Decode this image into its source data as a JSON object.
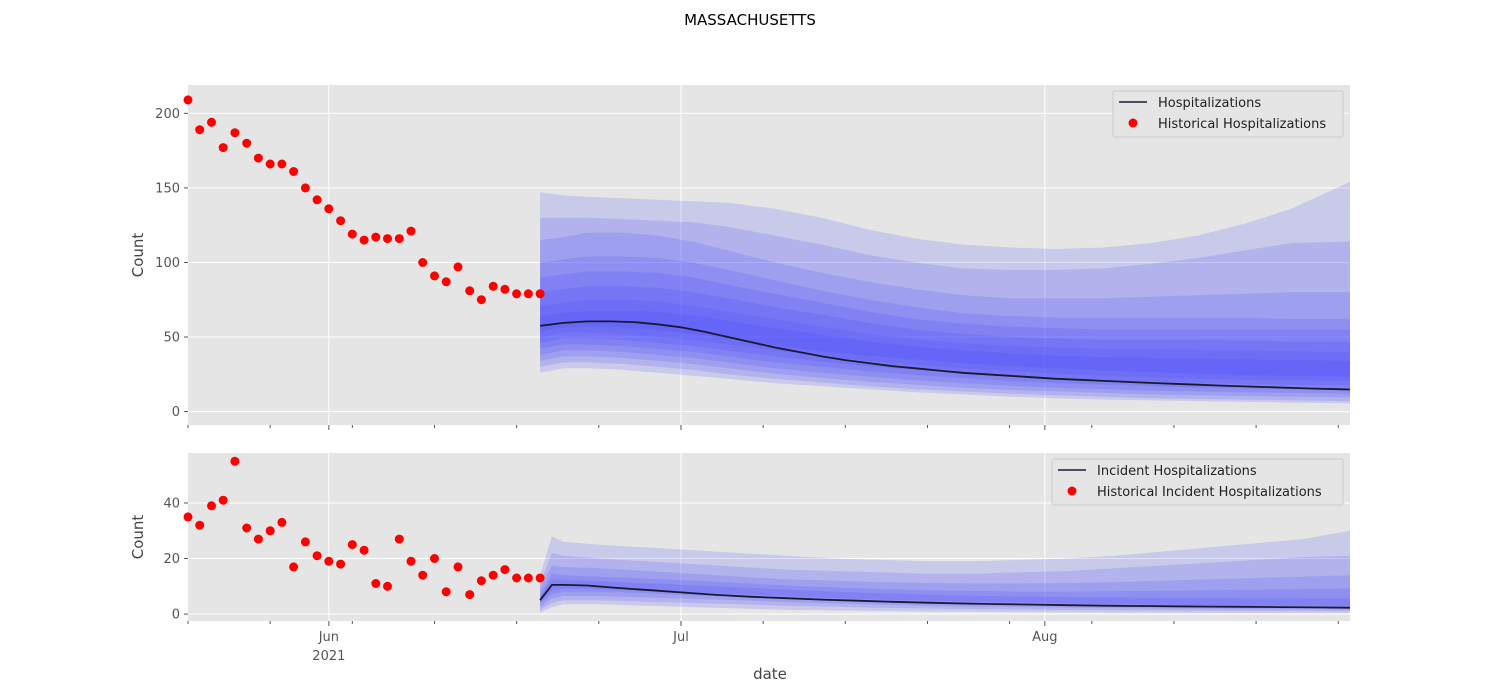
{
  "figure": {
    "title": "MASSACHUSETTS",
    "xlabel": "date"
  },
  "chart_data": [
    {
      "type": "line",
      "ylabel": "Count",
      "ylim": [
        -9,
        219
      ],
      "yticks": [
        0,
        50,
        100,
        150,
        200
      ],
      "grid": true,
      "legend_position": "top-right",
      "x_axis": {
        "type": "date",
        "range": [
          "2021-05-20",
          "2021-08-27"
        ],
        "major_ticks": [
          {
            "date": "2021-06-01",
            "label": "Jun",
            "sublabel": "2021"
          },
          {
            "date": "2021-07-01",
            "label": "Jul"
          },
          {
            "date": "2021-08-01",
            "label": "Aug"
          }
        ]
      },
      "series": [
        {
          "name": "Historical Hospitalizations",
          "kind": "scatter",
          "color": "#ff0000",
          "x": [
            "2021-05-20",
            "2021-05-21",
            "2021-05-22",
            "2021-05-23",
            "2021-05-24",
            "2021-05-25",
            "2021-05-26",
            "2021-05-27",
            "2021-05-28",
            "2021-05-29",
            "2021-05-30",
            "2021-05-31",
            "2021-06-01",
            "2021-06-02",
            "2021-06-03",
            "2021-06-04",
            "2021-06-05",
            "2021-06-06",
            "2021-06-07",
            "2021-06-08",
            "2021-06-09",
            "2021-06-10",
            "2021-06-11",
            "2021-06-12",
            "2021-06-13",
            "2021-06-14",
            "2021-06-15",
            "2021-06-16",
            "2021-06-17",
            "2021-06-18",
            "2021-06-19"
          ],
          "y": [
            209,
            189,
            194,
            177,
            187,
            180,
            170,
            166,
            166,
            161,
            150,
            142,
            136,
            128,
            119,
            115,
            117,
            116,
            116,
            121,
            100,
            91,
            87,
            97,
            81,
            75,
            84,
            82,
            79,
            79,
            79
          ]
        },
        {
          "name": "Hospitalizations",
          "kind": "line",
          "color": "#1a1a2e",
          "x": [
            "2021-06-19",
            "2021-06-21",
            "2021-06-23",
            "2021-06-25",
            "2021-06-27",
            "2021-06-29",
            "2021-07-01",
            "2021-07-03",
            "2021-07-05",
            "2021-07-07",
            "2021-07-09",
            "2021-07-11",
            "2021-07-13",
            "2021-07-15",
            "2021-07-17",
            "2021-07-19",
            "2021-07-21",
            "2021-07-23",
            "2021-07-25",
            "2021-07-27",
            "2021-07-29",
            "2021-07-31",
            "2021-08-02",
            "2021-08-04",
            "2021-08-06",
            "2021-08-08",
            "2021-08-10",
            "2021-08-12",
            "2021-08-14",
            "2021-08-16",
            "2021-08-18",
            "2021-08-20",
            "2021-08-22",
            "2021-08-24",
            "2021-08-26",
            "2021-08-27"
          ],
          "y": [
            57.5,
            59.5,
            60.5,
            60.5,
            60,
            58.5,
            56.5,
            53.5,
            50,
            46.5,
            43,
            40,
            37,
            34.5,
            32.5,
            30.5,
            29,
            27.5,
            26,
            25,
            24,
            23,
            22,
            21.3,
            20.6,
            19.9,
            19.2,
            18.6,
            18,
            17.4,
            16.9,
            16.4,
            15.9,
            15.4,
            15,
            14.8
          ]
        }
      ],
      "uncertainty_bands": {
        "color": "#4040ff",
        "x": [
          "2021-06-19",
          "2021-06-21",
          "2021-06-23",
          "2021-06-26",
          "2021-06-29",
          "2021-07-02",
          "2021-07-05",
          "2021-07-09",
          "2021-07-13",
          "2021-07-17",
          "2021-07-21",
          "2021-07-25",
          "2021-07-29",
          "2021-08-02",
          "2021-08-06",
          "2021-08-10",
          "2021-08-14",
          "2021-08-18",
          "2021-08-22",
          "2021-08-27"
        ],
        "quantile_pairs": [
          {
            "low": [
              26,
              29,
              29,
              28,
              26,
              24,
              22,
              19,
              17,
              15,
              13,
              11.5,
              10,
              9,
              8,
              7.5,
              7,
              6.5,
              6,
              5.5
            ],
            "high": [
              147,
              145,
              144,
              143,
              142,
              141,
              140,
              136,
              130,
              122,
              116,
              112,
              110,
              109,
              110,
              113,
              118,
              126,
              136,
              154
            ]
          },
          {
            "low": [
              30,
              33,
              33,
              32,
              30,
              28,
              25,
              22,
              19.5,
              17,
              15,
              13.5,
              12,
              11,
              10,
              9,
              8.5,
              8,
              7.5,
              7
            ],
            "high": [
              130,
              130,
              130,
              129,
              128,
              127,
              124,
              118,
              112,
              105,
              100,
              96,
              95,
              95,
              96,
              99,
              103,
              108,
              113,
              114
            ]
          },
          {
            "low": [
              34,
              37,
              37,
              36,
              34,
              32,
              29,
              25.5,
              22.5,
              20,
              18,
              16,
              14.5,
              13.5,
              12.5,
              11.5,
              11,
              10.5,
              10,
              9.5
            ],
            "high": [
              115,
              117,
              120,
              120,
              118,
              114,
              108,
              100,
              93,
              87,
              82,
              78,
              76,
              76,
              76,
              77,
              78,
              79,
              80,
              80
            ]
          },
          {
            "low": [
              38,
              41,
              41,
              40,
              38,
              36,
              33,
              29,
              26,
              23.5,
              21,
              19,
              17.5,
              16,
              15,
              14,
              13.5,
              13,
              12.5,
              12
            ],
            "high": [
              100,
              102,
              104,
              104,
              103,
              100,
              95,
              88,
              81,
              75,
              70,
              66,
              64,
              63,
              63,
              63,
              63,
              63,
              62,
              62
            ]
          },
          {
            "low": [
              42,
              45,
              45,
              44,
              42,
              40,
              37,
              33,
              30,
              27,
              24.5,
              22.5,
              20.5,
              19,
              18,
              17,
              16,
              15.5,
              15,
              14.5
            ],
            "high": [
              90,
              92,
              94,
              94,
              93,
              90,
              85,
              79,
              73,
              67,
              62,
              59,
              57,
              56,
              55,
              55,
              55,
              55,
              55,
              55
            ]
          },
          {
            "low": [
              46,
              49,
              49,
              48,
              46,
              44,
              41,
              37,
              33.5,
              30.5,
              28,
              25.5,
              23.5,
              22,
              21,
              20,
              19,
              18.5,
              18,
              17.5
            ],
            "high": [
              80,
              82,
              84,
              84,
              83,
              80,
              76,
              70,
              65,
              59.5,
              55,
              52,
              50,
              49,
              48,
              48,
              48,
              47.5,
              47,
              47
            ]
          },
          {
            "low": [
              50,
              53,
              53,
              52,
              50,
              48,
              45,
              41,
              37,
              34,
              31.5,
              29,
              27,
              25.5,
              24,
              23,
              22,
              21.5,
              21,
              20.5
            ],
            "high": [
              71,
              73,
              75,
              75,
              74,
              71,
              67,
              62,
              57,
              52,
              48.5,
              46,
              44,
              43,
              42,
              42,
              41.5,
              41,
              40.5,
              40
            ]
          },
          {
            "low": [
              53.5,
              56.5,
              57,
              56.5,
              54.5,
              52,
              49,
              44.5,
              40.5,
              37.5,
              35,
              32.5,
              30.5,
              29,
              27.5,
              26.5,
              25.5,
              24.5,
              24,
              23.5
            ],
            "high": [
              64,
              66,
              67.5,
              67.5,
              67,
              64.5,
              61,
              56,
              51.5,
              47,
              43.5,
              41,
              39,
              37.5,
              36.5,
              36,
              35.5,
              35,
              34.5,
              34
            ]
          }
        ]
      }
    },
    {
      "type": "line",
      "ylabel": "Count",
      "ylim": [
        -2.5,
        58
      ],
      "yticks": [
        0,
        20,
        40
      ],
      "grid": true,
      "legend_position": "top-right",
      "x_axis": {
        "type": "date",
        "range": [
          "2021-05-20",
          "2021-08-27"
        ],
        "major_ticks": [
          {
            "date": "2021-06-01",
            "label": "Jun",
            "sublabel": "2021"
          },
          {
            "date": "2021-07-01",
            "label": "Jul"
          },
          {
            "date": "2021-08-01",
            "label": "Aug"
          }
        ]
      },
      "series": [
        {
          "name": "Historical Incident Hospitalizations",
          "kind": "scatter",
          "color": "#ff0000",
          "x": [
            "2021-05-20",
            "2021-05-21",
            "2021-05-22",
            "2021-05-23",
            "2021-05-24",
            "2021-05-25",
            "2021-05-26",
            "2021-05-27",
            "2021-05-28",
            "2021-05-29",
            "2021-05-30",
            "2021-05-31",
            "2021-06-01",
            "2021-06-02",
            "2021-06-03",
            "2021-06-04",
            "2021-06-05",
            "2021-06-06",
            "2021-06-07",
            "2021-06-08",
            "2021-06-09",
            "2021-06-10",
            "2021-06-11",
            "2021-06-12",
            "2021-06-13",
            "2021-06-14",
            "2021-06-15",
            "2021-06-16",
            "2021-06-17",
            "2021-06-18",
            "2021-06-19"
          ],
          "y": [
            35,
            32,
            39,
            41,
            55,
            31,
            27,
            30,
            33,
            17,
            26,
            21,
            19,
            18,
            25,
            23,
            11,
            10,
            27,
            19,
            14,
            20,
            8,
            17,
            7,
            12,
            14,
            16,
            13,
            13,
            13
          ]
        },
        {
          "name": "Incident Hospitalizations",
          "kind": "line",
          "color": "#1a1a2e",
          "x": [
            "2021-06-19",
            "2021-06-20",
            "2021-06-21",
            "2021-06-23",
            "2021-06-25",
            "2021-06-27",
            "2021-06-29",
            "2021-07-01",
            "2021-07-04",
            "2021-07-07",
            "2021-07-10",
            "2021-07-13",
            "2021-07-16",
            "2021-07-19",
            "2021-07-22",
            "2021-07-25",
            "2021-07-28",
            "2021-07-31",
            "2021-08-03",
            "2021-08-06",
            "2021-08-09",
            "2021-08-12",
            "2021-08-15",
            "2021-08-18",
            "2021-08-21",
            "2021-08-24",
            "2021-08-27"
          ],
          "y": [
            5,
            10.5,
            10.5,
            10.3,
            9.6,
            9,
            8.4,
            7.8,
            6.9,
            6.2,
            5.7,
            5.2,
            4.8,
            4.4,
            4.1,
            3.8,
            3.6,
            3.4,
            3.2,
            3.0,
            2.9,
            2.8,
            2.7,
            2.6,
            2.5,
            2.4,
            2.3
          ]
        }
      ],
      "uncertainty_bands": {
        "color": "#4040ff",
        "x": [
          "2021-06-19",
          "2021-06-20",
          "2021-06-21",
          "2021-06-24",
          "2021-06-28",
          "2021-07-02",
          "2021-07-06",
          "2021-07-10",
          "2021-07-14",
          "2021-07-18",
          "2021-07-22",
          "2021-07-26",
          "2021-07-30",
          "2021-08-03",
          "2021-08-07",
          "2021-08-11",
          "2021-08-15",
          "2021-08-19",
          "2021-08-23",
          "2021-08-27"
        ],
        "quantile_pairs": [
          {
            "low": [
              0.5,
              2.5,
              3.5,
              3.5,
              3,
              2.5,
              2,
              1.5,
              1.3,
              1.1,
              0.9,
              0.8,
              0.7,
              0.6,
              0.5,
              0.5,
              0.4,
              0.4,
              0.4,
              0.4
            ],
            "high": [
              14,
              28,
              26,
              25,
              24,
              23,
              22,
              21,
              20,
              19.5,
              19,
              19,
              19.5,
              20,
              21,
              22.5,
              24,
              25.5,
              27,
              30
            ]
          },
          {
            "low": [
              1.5,
              4,
              5,
              5,
              4.5,
              4,
              3.5,
              3,
              2.6,
              2.3,
              2,
              1.8,
              1.6,
              1.5,
              1.4,
              1.3,
              1.2,
              1.1,
              1.1,
              1
            ],
            "high": [
              11,
              22,
              21,
              20,
              19,
              18,
              17,
              16,
              15.5,
              15,
              14.5,
              14.5,
              15,
              15.5,
              16.5,
              17.5,
              18.5,
              19.5,
              20.5,
              21
            ]
          },
          {
            "low": [
              2.5,
              5.5,
              6.5,
              6.5,
              6,
              5.5,
              5,
              4.3,
              3.8,
              3.4,
              3,
              2.7,
              2.5,
              2.3,
              2.2,
              2,
              1.9,
              1.8,
              1.7,
              1.6
            ],
            "high": [
              9,
              17.5,
              17,
              16.5,
              15.5,
              14.5,
              13.5,
              12.5,
              12,
              11.5,
              11.2,
              11,
              11,
              11.2,
              11.5,
              12,
              12.5,
              13,
              13.5,
              14
            ]
          },
          {
            "low": [
              3.5,
              7,
              8,
              8,
              7.5,
              6.8,
              6.2,
              5.5,
              4.9,
              4.4,
              4,
              3.6,
              3.3,
              3.1,
              2.9,
              2.7,
              2.6,
              2.5,
              2.4,
              2.3
            ],
            "high": [
              7,
              14.5,
              14,
              13.5,
              12.8,
              12,
              11.2,
              10.3,
              9.6,
              9,
              8.6,
              8.3,
              8.1,
              8.1,
              8.2,
              8.4,
              8.6,
              8.8,
              9,
              9.2
            ]
          },
          {
            "low": [
              4.2,
              8.5,
              9.2,
              9,
              8.5,
              7.8,
              7.1,
              6.4,
              5.8,
              5.2,
              4.8,
              4.4,
              4.1,
              3.8,
              3.6,
              3.4,
              3.2,
              3.1,
              3,
              2.9
            ],
            "high": [
              6,
              12.5,
              12.2,
              11.8,
              11.2,
              10.4,
              9.6,
              8.8,
              8.1,
              7.5,
              7,
              6.6,
              6.3,
              6.1,
              6,
              5.9,
              5.8,
              5.7,
              5.6,
              5.5
            ]
          }
        ]
      }
    }
  ]
}
